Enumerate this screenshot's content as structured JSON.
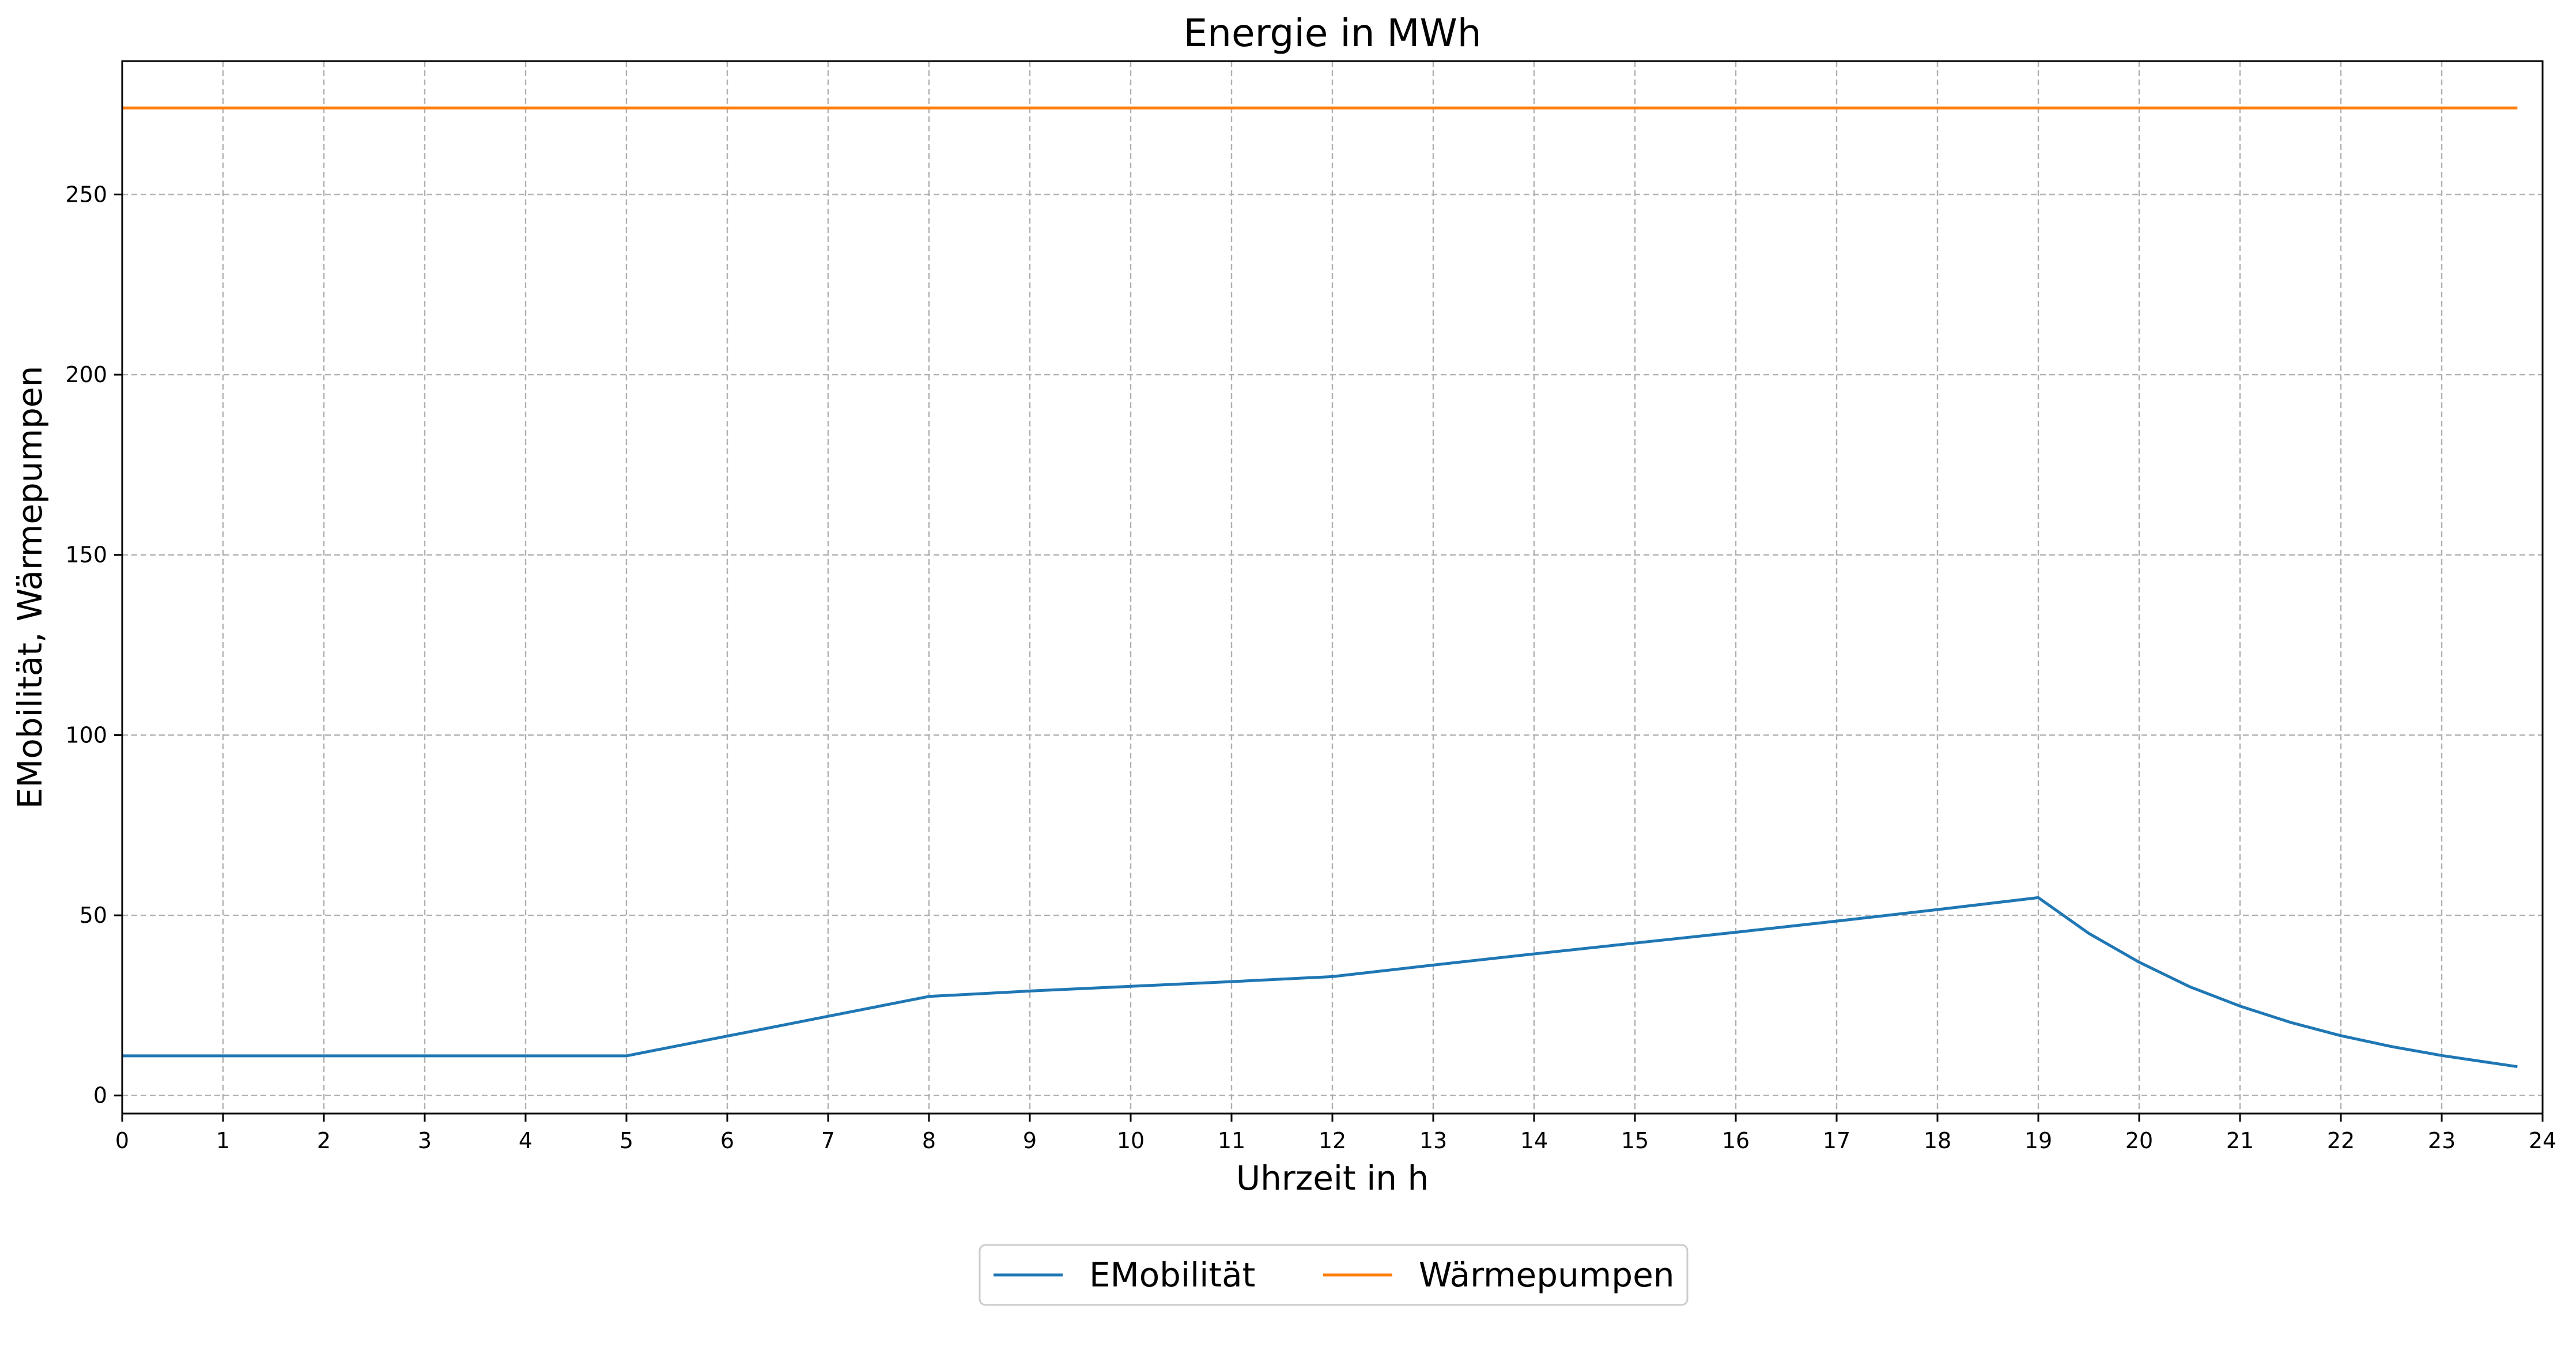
{
  "chart_data": {
    "type": "line",
    "title": "Energie in MWh",
    "xlabel": "Uhrzeit in h",
    "ylabel": "EMobilität, Wärmepumpen",
    "xlim": [
      0,
      24
    ],
    "ylim": [
      -5,
      287
    ],
    "xticks": [
      "0",
      "1",
      "2",
      "3",
      "4",
      "5",
      "6",
      "7",
      "8",
      "9",
      "10",
      "11",
      "12",
      "13",
      "14",
      "15",
      "16",
      "17",
      "18",
      "19",
      "20",
      "21",
      "22",
      "23",
      "24"
    ],
    "yticks": [
      "0",
      "50",
      "100",
      "150",
      "200",
      "250"
    ],
    "grid": true,
    "legend_position": "bottom-center",
    "series": [
      {
        "name": "EMobilität",
        "color": "#1f77b4",
        "x": [
          0,
          1,
          2,
          3,
          4,
          5,
          6,
          7,
          8,
          9,
          10,
          11,
          12,
          13,
          14,
          15,
          16,
          17,
          18,
          19,
          19.5,
          20,
          20.5,
          21,
          21.5,
          22,
          22.5,
          23,
          23.75
        ],
        "y": [
          11,
          11,
          11,
          11,
          11,
          11,
          16.5,
          22,
          27.5,
          29,
          30.3,
          31.6,
          33,
          36.2,
          39.3,
          42.3,
          45.3,
          48.4,
          51.6,
          54.9,
          45,
          37,
          30.2,
          24.8,
          20.3,
          16.6,
          13.6,
          11.1,
          8
        ]
      },
      {
        "name": "Wärmepumpen",
        "color": "#ff7f0e",
        "x": [
          0,
          23.75
        ],
        "y": [
          274,
          274
        ]
      }
    ]
  }
}
